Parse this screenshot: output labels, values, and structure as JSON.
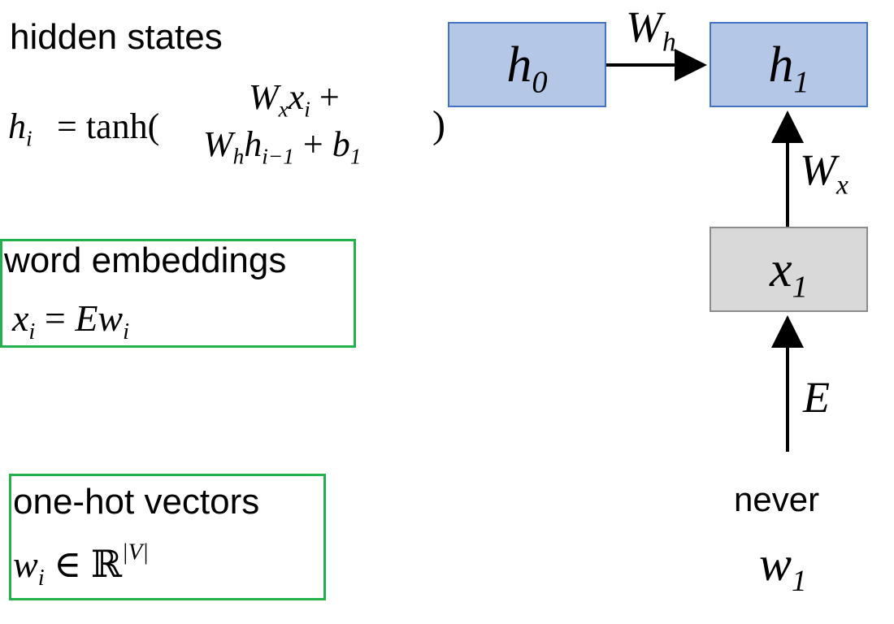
{
  "hidden_states": {
    "title": "hidden states",
    "lhs_var": "h",
    "lhs_sub": "i",
    "eq_func": "= tanh(",
    "term1_var": "W",
    "term1_sub": "x",
    "term1_var2": "x",
    "term1_sub2": "i",
    "term1_plus": "+",
    "term2_var": "W",
    "term2_sub": "h",
    "term2_var2": "h",
    "term2_sub2": "i−1",
    "term2_plus": "+ ",
    "term2_var3": "b",
    "term2_sub3": "1",
    "close_paren": ")"
  },
  "word_embeddings": {
    "title": "word embeddings",
    "lhs_var": "x",
    "lhs_sub": "i",
    "eq": "=",
    "rhs_var": "Ew",
    "rhs_sub": "i"
  },
  "one_hot": {
    "title": "one-hot vectors",
    "lhs_var": "w",
    "lhs_sub": "i",
    "in_sym": "∈",
    "set": "ℝ",
    "sup": "|V|"
  },
  "nodes": {
    "h0_var": "h",
    "h0_sub": "0",
    "h1_var": "h",
    "h1_sub": "1",
    "x1_var": "x",
    "x1_sub": "1"
  },
  "edges": {
    "wh_var": "W",
    "wh_sub": "h",
    "wx_var": "W",
    "wx_sub": "x",
    "e_label": "E"
  },
  "input": {
    "word": "never",
    "var": "w",
    "sub": "1"
  },
  "colors": {
    "hidden_node_fill": "#b4c7e7",
    "hidden_node_border": "#4472c4",
    "embed_node_fill": "#d9d9d9",
    "embed_node_border": "#8c8c8c",
    "highlight_box": "#22b14c"
  }
}
